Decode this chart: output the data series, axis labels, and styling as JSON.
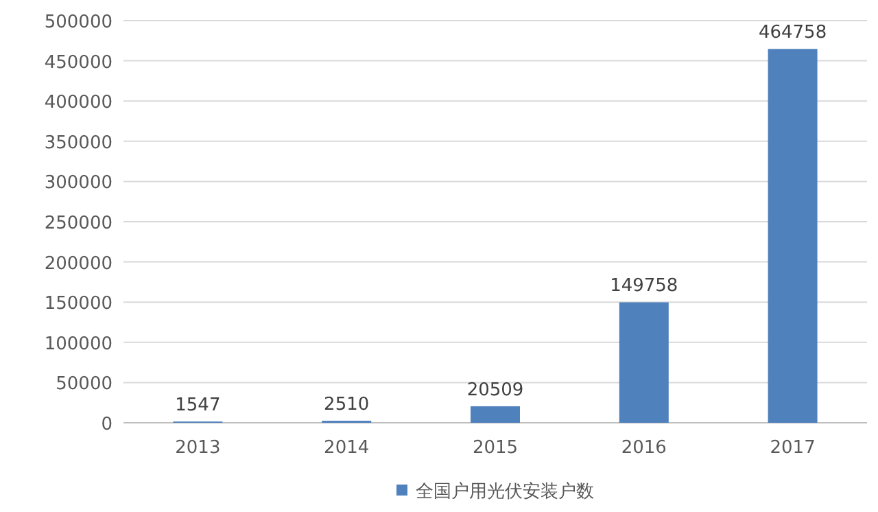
{
  "chart_data": {
    "type": "bar",
    "categories": [
      "2013",
      "2014",
      "2015",
      "2016",
      "2017"
    ],
    "series": [
      {
        "name": "全国户用光伏安装户数",
        "color": "#4f81bd",
        "values": [
          1547,
          2510,
          20509,
          149758,
          464758
        ]
      }
    ],
    "ylim": [
      0,
      500000
    ],
    "yticks": [
      0,
      50000,
      100000,
      150000,
      200000,
      250000,
      300000,
      350000,
      400000,
      450000,
      500000
    ],
    "grid": "y",
    "data_labels": true,
    "legend": "bottom"
  }
}
